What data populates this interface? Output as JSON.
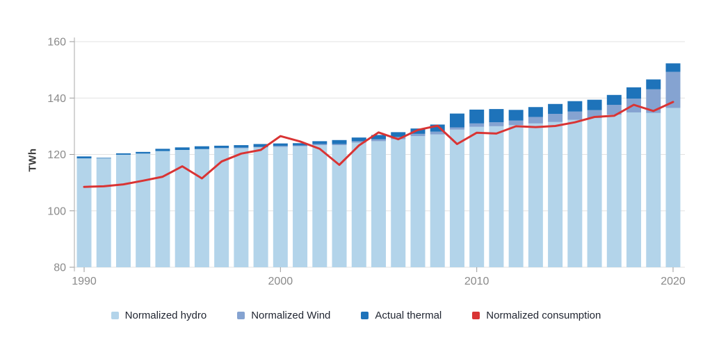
{
  "chart_data": {
    "type": "bar",
    "subtype": "stacked-bars-with-line-overlay",
    "title": "",
    "xlabel": "",
    "ylabel": "TWh",
    "ylim": [
      80,
      160
    ],
    "yticks": [
      80,
      100,
      120,
      140,
      160
    ],
    "xticks": [
      1990,
      2000,
      2010,
      2020
    ],
    "grid": "horizontal",
    "legend_position": "bottom",
    "x": [
      1990,
      1991,
      1992,
      1993,
      1994,
      1995,
      1996,
      1997,
      1998,
      1999,
      2000,
      2001,
      2002,
      2003,
      2004,
      2005,
      2006,
      2007,
      2008,
      2009,
      2010,
      2011,
      2012,
      2013,
      2014,
      2015,
      2016,
      2017,
      2018,
      2019,
      2020
    ],
    "series": [
      {
        "name": "Normalized hydro",
        "type": "bar",
        "color": "#b3d4ea",
        "values": [
          118.6,
          118.6,
          119.9,
          120.3,
          121.2,
          121.6,
          121.9,
          122.2,
          122.2,
          122.5,
          122.7,
          122.9,
          123.3,
          123.3,
          124.2,
          124.7,
          125.4,
          126.5,
          127.1,
          128.8,
          129.8,
          130.0,
          130.4,
          131.0,
          131.5,
          132.3,
          132.9,
          134.1,
          134.9,
          134.7,
          136.5
        ]
      },
      {
        "name": "Normalized Wind",
        "type": "bar",
        "color": "#85a3d1",
        "values": [
          0,
          0,
          0,
          0,
          0,
          0,
          0,
          0.1,
          0.2,
          0.2,
          0.3,
          0.3,
          0.4,
          0.4,
          0.5,
          0.7,
          0.8,
          0.8,
          1.0,
          0.8,
          1.2,
          1.4,
          1.6,
          2.3,
          2.9,
          2.9,
          2.8,
          3.5,
          4.9,
          8.4,
          12.8
        ]
      },
      {
        "name": "Actual thermal",
        "type": "bar",
        "color": "#1e73ba",
        "values": [
          0.7,
          0.2,
          0.5,
          0.6,
          0.8,
          0.9,
          1.0,
          0.8,
          0.9,
          1.0,
          0.9,
          0.8,
          1.0,
          1.4,
          1.3,
          1.5,
          1.7,
          1.9,
          2.5,
          4.9,
          4.9,
          4.7,
          3.8,
          3.5,
          3.5,
          3.7,
          3.7,
          3.5,
          4.0,
          3.5,
          3.0
        ]
      },
      {
        "name": "Normalized consumption",
        "type": "line",
        "color": "#d93434",
        "values": [
          108.5,
          108.7,
          109.4,
          110.7,
          112.1,
          115.8,
          111.5,
          117.5,
          120.3,
          121.6,
          126.5,
          124.6,
          122.0,
          116.3,
          123.2,
          127.8,
          125.4,
          128.7,
          130.2,
          123.7,
          127.7,
          127.4,
          130.0,
          129.7,
          130.1,
          131.4,
          133.3,
          133.7,
          137.6,
          135.4,
          138.6
        ]
      }
    ]
  },
  "legend": {
    "items": [
      {
        "label": "Normalized hydro",
        "color": "#b3d4ea"
      },
      {
        "label": "Normalized Wind",
        "color": "#85a3d1"
      },
      {
        "label": "Actual thermal",
        "color": "#1e73ba"
      },
      {
        "label": "Normalized consumption",
        "color": "#d93434"
      }
    ]
  },
  "style": {
    "grid_color": "#e2e2e2",
    "axis_color": "#aaaaaa",
    "tick_color": "#999999",
    "tick_label_color": "#8a8a8a",
    "background": "#ffffff"
  }
}
